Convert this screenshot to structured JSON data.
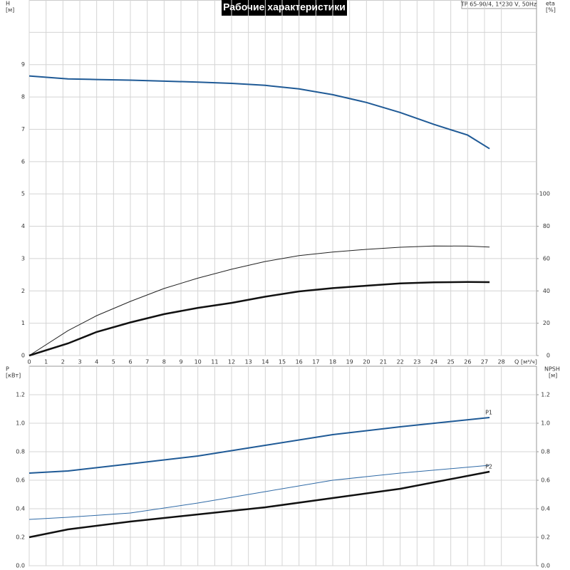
{
  "chart_data": [
    {
      "type": "line",
      "title": "Рабочие характеристики",
      "subtitle": "TP 65-90/4, 1*230 V, 50Hz",
      "ylabel": "H",
      "yunit": "[м]",
      "xlabel": "Q",
      "xunit": "[м³/ч]",
      "y2label": "eta",
      "y2unit": "[%]",
      "xlim": [
        0,
        30
      ],
      "xticks": [
        0,
        1,
        2,
        3,
        4,
        5,
        6,
        7,
        8,
        9,
        10,
        11,
        12,
        13,
        14,
        15,
        16,
        17,
        18,
        19,
        20,
        21,
        22,
        23,
        24,
        25,
        26,
        27,
        28
      ],
      "ylim": [
        0,
        11
      ],
      "yticks": [
        0,
        1,
        2,
        3,
        4,
        5,
        6,
        7,
        8,
        9
      ],
      "y2lim": [
        0,
        220
      ],
      "y2ticks": [
        0,
        20,
        40,
        60,
        80,
        100
      ],
      "grid": true,
      "x": [
        0,
        2.3,
        4,
        6,
        8,
        10,
        12,
        14,
        16,
        18,
        20,
        22,
        24,
        26,
        27.3
      ],
      "series": [
        {
          "color": "#1f5a96",
          "width": 2,
          "values": [
            8.65,
            8.56,
            8.54,
            8.52,
            8.49,
            8.46,
            8.42,
            8.36,
            8.25,
            8.07,
            7.83,
            7.52,
            7.15,
            6.82,
            6.4
          ]
        },
        {
          "color": "#222222",
          "width": 1,
          "axis": "y2",
          "values": [
            0,
            15.4,
            24.7,
            33.5,
            41.5,
            47.9,
            53.4,
            58.2,
            61.8,
            64.0,
            65.7,
            67.0,
            67.8,
            67.7,
            67.1
          ]
        },
        {
          "color": "#111111",
          "width": 2.5,
          "axis": "y2",
          "values": [
            0,
            7.5,
            14.6,
            20.5,
            25.6,
            29.5,
            32.6,
            36.4,
            39.7,
            41.7,
            43.2,
            44.6,
            45.3,
            45.5,
            45.4
          ]
        }
      ]
    },
    {
      "type": "line",
      "ylabel": "P",
      "yunit": "[кВт]",
      "y2label": "NPSH",
      "y2unit": "[м]",
      "xlim": [
        0,
        30
      ],
      "ylim": [
        0,
        1.4
      ],
      "yticks": [
        {
          "value": 0,
          "label": "0.0"
        },
        0.2,
        0.4,
        0.6,
        0.8,
        {
          "value": 1,
          "label": "1.0"
        },
        1.2
      ],
      "y2lim": [
        0,
        1.4
      ],
      "y2ticks": [
        {
          "value": 0,
          "label": "0.0"
        },
        0.2,
        0.4,
        0.6,
        0.8,
        {
          "value": 1,
          "label": "1.0"
        },
        1.2
      ],
      "grid": true,
      "x": [
        0,
        2.3,
        6,
        10,
        14,
        18,
        22,
        27.3
      ],
      "series": [
        {
          "name": "P1",
          "color": "#1f5a96",
          "width": 2,
          "values": [
            0.65,
            0.665,
            0.715,
            0.77,
            0.845,
            0.92,
            0.975,
            1.04
          ]
        },
        {
          "color": "#2f6aa6",
          "width": 1,
          "axis": "y2",
          "values": [
            0.325,
            0.34,
            0.37,
            0.44,
            0.52,
            0.6,
            0.65,
            0.705
          ]
        },
        {
          "name": "P2",
          "color": "#111111",
          "width": 2.5,
          "values": [
            0.2,
            0.255,
            0.31,
            0.36,
            0.41,
            0.475,
            0.54,
            0.66
          ]
        }
      ]
    }
  ]
}
